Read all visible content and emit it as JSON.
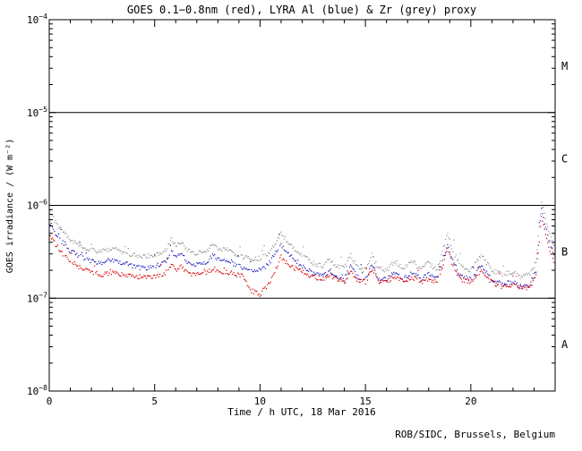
{
  "chart_data": {
    "type": "line",
    "title": "GOES 0.1−0.8nm (red), LYRA Al (blue) & Zr (grey) proxy",
    "xlabel": "Time / h UTC, 18 Mar 2016",
    "ylabel": "GOES irradiance / (W m⁻²)",
    "xlim": [
      0,
      24
    ],
    "ylim": [
      1e-08,
      0.0001
    ],
    "grid": false,
    "x_major_ticks": [
      {
        "label": "0",
        "value": 0
      },
      {
        "label": "5",
        "value": 5
      },
      {
        "label": "10",
        "value": 10
      },
      {
        "label": "15",
        "value": 15
      },
      {
        "label": "20",
        "value": 20
      }
    ],
    "y_ticks": [
      {
        "base": "10",
        "exp": "−4",
        "value": 0.0001
      },
      {
        "base": "10",
        "exp": "−5",
        "value": 1e-05
      },
      {
        "base": "10",
        "exp": "−6",
        "value": 1e-06
      },
      {
        "base": "10",
        "exp": "−7",
        "value": 1e-07
      },
      {
        "base": "10",
        "exp": "−8",
        "value": 1e-08
      }
    ],
    "class_boundaries": [
      1e-05,
      1e-06,
      1e-07
    ],
    "flare_classes": [
      {
        "label": "M",
        "value": 3.16e-05
      },
      {
        "label": "C",
        "value": 3.16e-06
      },
      {
        "label": "B",
        "value": 3.16e-07
      },
      {
        "label": "A",
        "value": 3.16e-08
      }
    ],
    "series": [
      {
        "name": "LYRA Zr proxy",
        "color": "#969696",
        "points": [
          [
            0,
            9e-07
          ],
          [
            0.3,
            6.5e-07
          ],
          [
            0.7,
            5e-07
          ],
          [
            1.0,
            4.2e-07
          ],
          [
            1.5,
            3.6e-07
          ],
          [
            2.0,
            3.3e-07
          ],
          [
            2.5,
            3.2e-07
          ],
          [
            3.0,
            3.4e-07
          ],
          [
            3.5,
            3.1e-07
          ],
          [
            4.0,
            2.9e-07
          ],
          [
            4.5,
            2.8e-07
          ],
          [
            5.0,
            2.9e-07
          ],
          [
            5.5,
            3.2e-07
          ],
          [
            5.8,
            4.4e-07
          ],
          [
            6.0,
            3.6e-07
          ],
          [
            6.3,
            4e-07
          ],
          [
            6.6,
            3.2e-07
          ],
          [
            7.0,
            3e-07
          ],
          [
            7.5,
            3.3e-07
          ],
          [
            7.8,
            3.8e-07
          ],
          [
            8.1,
            3.3e-07
          ],
          [
            8.5,
            3.4e-07
          ],
          [
            8.8,
            3e-07
          ],
          [
            9.2,
            2.8e-07
          ],
          [
            9.6,
            2.6e-07
          ],
          [
            10.0,
            2.7e-07
          ],
          [
            10.4,
            3e-07
          ],
          [
            10.8,
            4.2e-07
          ],
          [
            11.0,
            5e-07
          ],
          [
            11.2,
            4.4e-07
          ],
          [
            11.5,
            3.6e-07
          ],
          [
            12.0,
            2.9e-07
          ],
          [
            12.5,
            2.4e-07
          ],
          [
            13.0,
            2.2e-07
          ],
          [
            13.3,
            2.6e-07
          ],
          [
            13.6,
            2.2e-07
          ],
          [
            14.0,
            2.1e-07
          ],
          [
            14.3,
            2.9e-07
          ],
          [
            14.6,
            2.2e-07
          ],
          [
            15.0,
            2e-07
          ],
          [
            15.3,
            3e-07
          ],
          [
            15.6,
            2.1e-07
          ],
          [
            16.0,
            2e-07
          ],
          [
            16.4,
            2.5e-07
          ],
          [
            16.8,
            2.1e-07
          ],
          [
            17.2,
            2.5e-07
          ],
          [
            17.6,
            2.1e-07
          ],
          [
            18.0,
            2.4e-07
          ],
          [
            18.4,
            2e-07
          ],
          [
            18.9,
            5e-07
          ],
          [
            19.1,
            3.5e-07
          ],
          [
            19.5,
            2.2e-07
          ],
          [
            20.0,
            2e-07
          ],
          [
            20.5,
            2.9e-07
          ],
          [
            21.0,
            2e-07
          ],
          [
            21.5,
            1.8e-07
          ],
          [
            22.0,
            1.9e-07
          ],
          [
            22.4,
            1.7e-07
          ],
          [
            22.8,
            1.8e-07
          ],
          [
            23.1,
            2.5e-07
          ],
          [
            23.35,
            1.1e-06
          ],
          [
            23.5,
            8e-07
          ],
          [
            23.8,
            4.5e-07
          ],
          [
            24,
            3.6e-07
          ]
        ]
      },
      {
        "name": "LYRA Al proxy",
        "color": "#2222bb",
        "points": [
          [
            0,
            6.8e-07
          ],
          [
            0.3,
            5e-07
          ],
          [
            0.7,
            3.8e-07
          ],
          [
            1.0,
            3.2e-07
          ],
          [
            1.5,
            2.8e-07
          ],
          [
            2.0,
            2.5e-07
          ],
          [
            2.5,
            2.4e-07
          ],
          [
            3.0,
            2.6e-07
          ],
          [
            3.5,
            2.4e-07
          ],
          [
            4.0,
            2.2e-07
          ],
          [
            4.5,
            2.1e-07
          ],
          [
            5.0,
            2.2e-07
          ],
          [
            5.5,
            2.4e-07
          ],
          [
            5.8,
            3.3e-07
          ],
          [
            6.0,
            2.7e-07
          ],
          [
            6.3,
            3e-07
          ],
          [
            6.6,
            2.4e-07
          ],
          [
            7.0,
            2.3e-07
          ],
          [
            7.5,
            2.5e-07
          ],
          [
            7.8,
            2.9e-07
          ],
          [
            8.1,
            2.5e-07
          ],
          [
            8.5,
            2.6e-07
          ],
          [
            8.8,
            2.3e-07
          ],
          [
            9.2,
            2.1e-07
          ],
          [
            9.6,
            2e-07
          ],
          [
            10.0,
            2e-07
          ],
          [
            10.4,
            2.3e-07
          ],
          [
            10.8,
            3.2e-07
          ],
          [
            11.0,
            3.8e-07
          ],
          [
            11.2,
            3.3e-07
          ],
          [
            11.5,
            2.8e-07
          ],
          [
            12.0,
            2.2e-07
          ],
          [
            12.5,
            1.9e-07
          ],
          [
            13.0,
            1.7e-07
          ],
          [
            13.3,
            2e-07
          ],
          [
            13.6,
            1.7e-07
          ],
          [
            14.0,
            1.6e-07
          ],
          [
            14.3,
            2.2e-07
          ],
          [
            14.6,
            1.7e-07
          ],
          [
            15.0,
            1.6e-07
          ],
          [
            15.3,
            2.3e-07
          ],
          [
            15.6,
            1.6e-07
          ],
          [
            16.0,
            1.6e-07
          ],
          [
            16.4,
            1.9e-07
          ],
          [
            16.8,
            1.6e-07
          ],
          [
            17.2,
            1.9e-07
          ],
          [
            17.6,
            1.6e-07
          ],
          [
            18.0,
            1.8e-07
          ],
          [
            18.4,
            1.6e-07
          ],
          [
            18.9,
            3.9e-07
          ],
          [
            19.1,
            2.7e-07
          ],
          [
            19.5,
            1.7e-07
          ],
          [
            20.0,
            1.6e-07
          ],
          [
            20.5,
            2.2e-07
          ],
          [
            21.0,
            1.6e-07
          ],
          [
            21.5,
            1.4e-07
          ],
          [
            22.0,
            1.5e-07
          ],
          [
            22.4,
            1.3e-07
          ],
          [
            22.8,
            1.4e-07
          ],
          [
            23.1,
            2e-07
          ],
          [
            23.35,
            9e-07
          ],
          [
            23.5,
            6.5e-07
          ],
          [
            23.8,
            3.5e-07
          ],
          [
            24,
            2.9e-07
          ]
        ]
      },
      {
        "name": "GOES 0.1-0.8nm",
        "color": "#dd0000",
        "points": [
          [
            0,
            5e-07
          ],
          [
            0.3,
            3.8e-07
          ],
          [
            0.7,
            2.9e-07
          ],
          [
            1.0,
            2.5e-07
          ],
          [
            1.5,
            2.1e-07
          ],
          [
            2.0,
            1.9e-07
          ],
          [
            2.5,
            1.8e-07
          ],
          [
            3.0,
            1.9e-07
          ],
          [
            3.5,
            1.8e-07
          ],
          [
            4.0,
            1.7e-07
          ],
          [
            4.5,
            1.7e-07
          ],
          [
            5.0,
            1.7e-07
          ],
          [
            5.5,
            1.8e-07
          ],
          [
            5.8,
            2.4e-07
          ],
          [
            6.0,
            2e-07
          ],
          [
            6.3,
            2.2e-07
          ],
          [
            6.6,
            1.8e-07
          ],
          [
            7.0,
            1.8e-07
          ],
          [
            7.5,
            1.9e-07
          ],
          [
            7.8,
            2.1e-07
          ],
          [
            8.1,
            1.9e-07
          ],
          [
            8.5,
            1.9e-07
          ],
          [
            8.8,
            1.8e-07
          ],
          [
            9.2,
            1.7e-07
          ],
          [
            9.6,
            1.2e-07
          ],
          [
            10.0,
            1.1e-07
          ],
          [
            10.4,
            1.4e-07
          ],
          [
            10.8,
            2.2e-07
          ],
          [
            11.0,
            2.8e-07
          ],
          [
            11.2,
            2.5e-07
          ],
          [
            11.5,
            2.2e-07
          ],
          [
            12.0,
            1.9e-07
          ],
          [
            12.5,
            1.7e-07
          ],
          [
            13.0,
            1.6e-07
          ],
          [
            13.3,
            1.8e-07
          ],
          [
            13.6,
            1.6e-07
          ],
          [
            14.0,
            1.5e-07
          ],
          [
            14.3,
            1.9e-07
          ],
          [
            14.6,
            1.6e-07
          ],
          [
            15.0,
            1.5e-07
          ],
          [
            15.3,
            2e-07
          ],
          [
            15.6,
            1.5e-07
          ],
          [
            16.0,
            1.5e-07
          ],
          [
            16.4,
            1.7e-07
          ],
          [
            16.8,
            1.5e-07
          ],
          [
            17.2,
            1.7e-07
          ],
          [
            17.6,
            1.5e-07
          ],
          [
            18.0,
            1.6e-07
          ],
          [
            18.4,
            1.5e-07
          ],
          [
            18.9,
            3.3e-07
          ],
          [
            19.1,
            2.4e-07
          ],
          [
            19.5,
            1.6e-07
          ],
          [
            20.0,
            1.5e-07
          ],
          [
            20.5,
            1.9e-07
          ],
          [
            21.0,
            1.5e-07
          ],
          [
            21.4,
            1.3e-07
          ],
          [
            22.0,
            1.4e-07
          ],
          [
            22.4,
            1.3e-07
          ],
          [
            22.8,
            1.3e-07
          ],
          [
            23.1,
            1.8e-07
          ],
          [
            23.35,
            7.5e-07
          ],
          [
            23.5,
            5.5e-07
          ],
          [
            23.8,
            3e-07
          ],
          [
            24,
            2.4e-07
          ]
        ]
      }
    ]
  },
  "footer": {
    "credit": "ROB/SIDC, Brussels, Belgium"
  }
}
